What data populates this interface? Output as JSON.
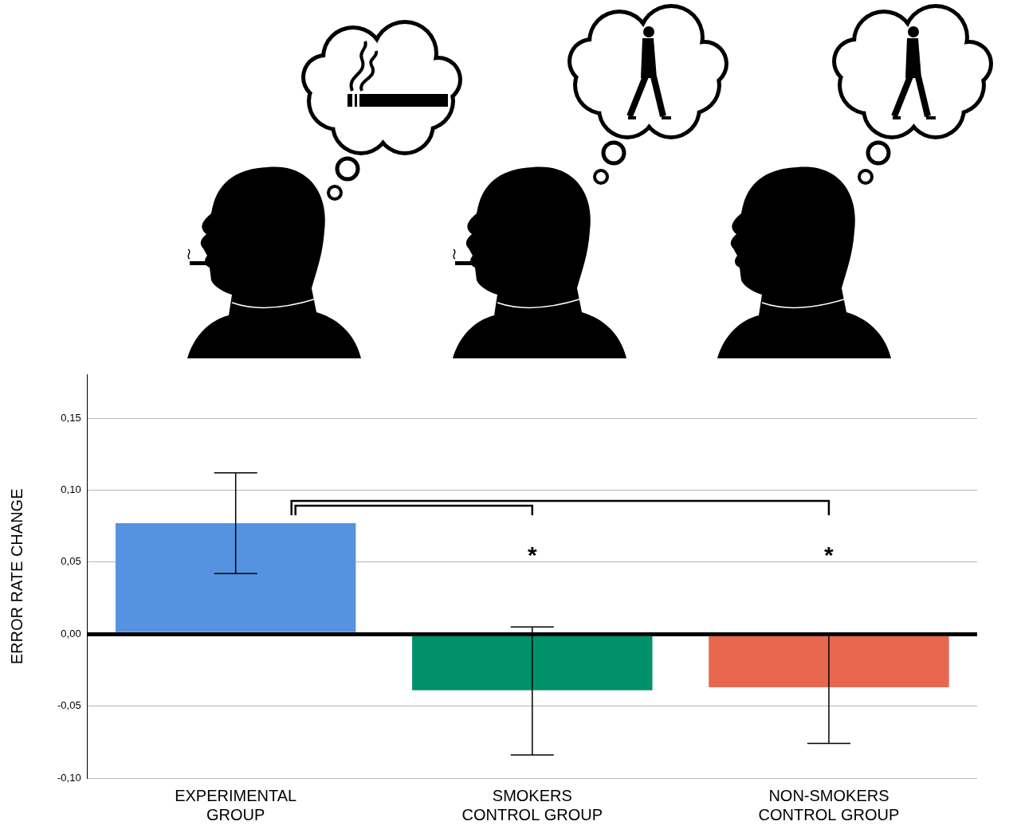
{
  "chart_data": {
    "type": "bar",
    "categories": [
      "EXPERIMENTAL GROUP",
      "SMOKERS CONTROL GROUP",
      "NON-SMOKERS CONTROL GROUP"
    ],
    "values": [
      0.077,
      -0.039,
      -0.037
    ],
    "error_low": [
      0.042,
      -0.084,
      -0.076
    ],
    "error_high": [
      0.112,
      0.005,
      0.0
    ],
    "colors": [
      "#5593e0",
      "#00916b",
      "#e8674f"
    ],
    "y_label": "ERROR RATE CHANGE",
    "ylim": [
      -0.1,
      0.18
    ],
    "yticks": [
      {
        "value": -0.1,
        "label": "-0,10"
      },
      {
        "value": -0.05,
        "label": "-0,05"
      },
      {
        "value": 0,
        "label": "0,00"
      },
      {
        "value": 0.05,
        "label": "0,05"
      },
      {
        "value": 0.1,
        "label": "0,10"
      },
      {
        "value": 0.15,
        "label": "0,15"
      }
    ],
    "grid": true,
    "comparisons": [
      {
        "from": "EXPERIMENTAL GROUP",
        "to": "SMOKERS CONTROL GROUP",
        "label": "*"
      },
      {
        "from": "EXPERIMENTAL GROUP",
        "to": "NON-SMOKERS CONTROL GROUP",
        "label": "*"
      }
    ]
  }
}
